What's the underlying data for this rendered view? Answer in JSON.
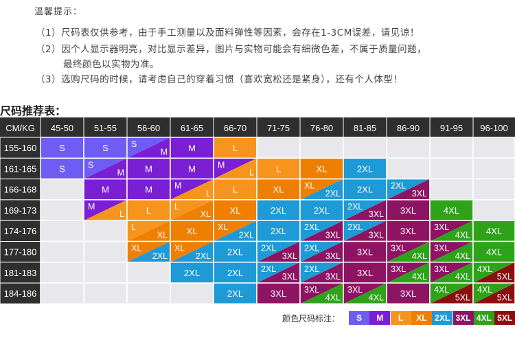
{
  "tips": {
    "title": "温馨提示：",
    "line1": "（1）尺码表仅供参考，由于手工测量以及面料弹性等因素，会存在1-3CM误差，请见谅！",
    "line2a": "（2）因个人显示器明亮，对比显示差异，图片与实物可能会有细微色差，不属于质量问题，",
    "line2b": "最终颜色以实物为准。",
    "line3": "（3）选购尺码的时候，请考虑自己的穿着习惯（喜欢宽松还是紧身），还有个人体型！"
  },
  "section_title": "尺码推荐表：",
  "corner_label": "CM/KG",
  "weight_columns": [
    "45-50",
    "51-55",
    "56-60",
    "61-65",
    "66-70",
    "71-75",
    "76-80",
    "81-85",
    "86-90",
    "91-95",
    "96-100"
  ],
  "height_rows": [
    "155-160",
    "161-165",
    "166-168",
    "169-173",
    "174-176",
    "177-180",
    "181-183",
    "184-186"
  ],
  "size_colors": {
    "S": "#6f5cf2",
    "M": "#7a1fd4",
    "L": "#f7941d",
    "XL": "#ef7f00",
    "2XL": "#1e9ad6",
    "3XL": "#8e1463",
    "4XL": "#2ea31a",
    "5XL": "#8a0f0f",
    "empty": "#e8e8ec",
    "header": "#2f2f2f",
    "border": "#ffffff"
  },
  "cells": [
    [
      "S",
      "S",
      "S/M",
      "M",
      "L",
      "",
      "",
      "",
      "",
      "",
      ""
    ],
    [
      "S",
      "S/M",
      "M",
      "M",
      "M/L",
      "L",
      "XL",
      "2XL",
      "",
      "",
      ""
    ],
    [
      "",
      "M",
      "M",
      "M/L",
      "L",
      "XL",
      "XL/2XL",
      "2XL",
      "2XL/3XL",
      "",
      ""
    ],
    [
      "",
      "M/L",
      "L",
      "L/XL",
      "XL",
      "2XL",
      "2XL",
      "2XL/3XL",
      "3XL",
      "4XL",
      ""
    ],
    [
      "",
      "",
      "L/XL",
      "XL",
      "XL/2XL",
      "2XL",
      "2XL/3XL",
      "2XL/3XL",
      "3XL",
      "3XL/4XL",
      "4XL"
    ],
    [
      "",
      "",
      "XL/2XL",
      "XL/2XL",
      "2XL",
      "2XL/3XL",
      "2XL/3XL",
      "3XL",
      "3XL/4XL",
      "3XL/4XL",
      "4XL"
    ],
    [
      "",
      "",
      "",
      "2XL",
      "2XL",
      "2XL/3XL",
      "2XL/3XL",
      "3XL",
      "3XL/4XL",
      "3XL/4XL",
      "4XL/5XL"
    ],
    [
      "",
      "",
      "",
      "",
      "2XL",
      "3XL",
      "3XL/4XL",
      "3XL/4XL",
      "3XL",
      "4XL/5XL",
      "4XL/5XL"
    ]
  ],
  "legend": {
    "label": "颜色尺码标注：",
    "items": [
      "S",
      "M",
      "L",
      "XL",
      "2XL",
      "3XL",
      "4XL",
      "5XL"
    ]
  }
}
